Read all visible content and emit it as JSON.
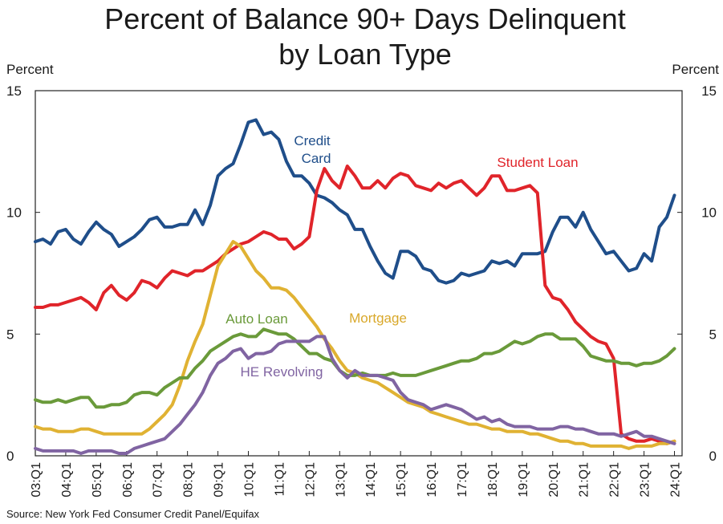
{
  "chart_data": {
    "type": "line",
    "title_line1": "Percent of Balance 90+ Days Delinquent",
    "title_line2": "by Loan Type",
    "ylabel_left": "Percent",
    "ylabel_right": "Percent",
    "ylim": [
      0,
      15
    ],
    "yticks": [
      "0",
      "5",
      "10",
      "15"
    ],
    "x_start": 2003.0,
    "x_end": 2024.0,
    "x_step": 0.25,
    "x_labels": [
      "03:Q1",
      "04:Q1",
      "05:Q1",
      "06:Q1",
      "07:Q1",
      "08:Q1",
      "09:Q1",
      "10:Q1",
      "11:Q1",
      "12:Q1",
      "13:Q1",
      "14:Q1",
      "15:Q1",
      "16:Q1",
      "17:Q1",
      "18:Q1",
      "19:Q1",
      "20:Q1",
      "21:Q1",
      "22:Q1",
      "23:Q1",
      "24:Q1"
    ],
    "source": "Source: New York Fed Consumer Credit Panel/Equifax",
    "series": [
      {
        "name": "Credit Card",
        "label_lines": [
          "Credit",
          "Card"
        ],
        "color": "#1f4e8a",
        "values": [
          8.8,
          8.9,
          8.7,
          9.2,
          9.3,
          8.9,
          8.7,
          9.2,
          9.6,
          9.3,
          9.1,
          8.6,
          8.8,
          9.0,
          9.3,
          9.7,
          9.8,
          9.4,
          9.4,
          9.5,
          9.5,
          10.1,
          9.5,
          10.3,
          11.5,
          11.8,
          12.0,
          12.8,
          13.7,
          13.8,
          13.2,
          13.3,
          13.0,
          12.1,
          11.5,
          11.5,
          11.2,
          10.7,
          10.6,
          10.4,
          10.1,
          9.9,
          9.3,
          9.3,
          8.6,
          8.0,
          7.5,
          7.3,
          8.4,
          8.4,
          8.2,
          7.7,
          7.6,
          7.2,
          7.1,
          7.2,
          7.5,
          7.4,
          7.5,
          7.6,
          8.0,
          7.9,
          8.0,
          7.8,
          8.3,
          8.3,
          8.3,
          8.4,
          9.2,
          9.8,
          9.8,
          9.4,
          10.0,
          9.3,
          8.8,
          8.3,
          8.4,
          8.0,
          7.6,
          7.7,
          8.3,
          8.0,
          9.4,
          9.8,
          10.7
        ]
      },
      {
        "name": "Student Loan",
        "label_lines": [
          "Student Loan"
        ],
        "color": "#e0242a",
        "values": [
          6.1,
          6.1,
          6.2,
          6.2,
          6.3,
          6.4,
          6.5,
          6.3,
          6.0,
          6.7,
          7.0,
          6.6,
          6.4,
          6.7,
          7.2,
          7.1,
          6.9,
          7.3,
          7.6,
          7.5,
          7.4,
          7.6,
          7.6,
          7.8,
          8.0,
          8.3,
          8.5,
          8.7,
          8.8,
          9.0,
          9.2,
          9.1,
          8.9,
          8.9,
          8.5,
          8.7,
          9.0,
          10.9,
          11.8,
          11.3,
          11.0,
          11.9,
          11.5,
          11.0,
          11.0,
          11.3,
          11.0,
          11.4,
          11.6,
          11.5,
          11.1,
          11.0,
          10.9,
          11.2,
          11.0,
          11.2,
          11.3,
          11.0,
          10.7,
          11.0,
          11.5,
          11.5,
          10.9,
          10.9,
          11.0,
          11.1,
          10.8,
          7.0,
          6.5,
          6.4,
          6.0,
          5.5,
          5.2,
          4.9,
          4.7,
          4.6,
          4.0,
          0.9,
          0.7,
          0.6,
          0.6,
          0.7,
          0.6,
          0.5,
          0.6
        ]
      },
      {
        "name": "Mortgage",
        "label_lines": [
          "Mortgage"
        ],
        "color": "#e0b233",
        "values": [
          1.2,
          1.1,
          1.1,
          1.0,
          1.0,
          1.0,
          1.1,
          1.1,
          1.0,
          0.9,
          0.9,
          0.9,
          0.9,
          0.9,
          0.9,
          1.1,
          1.4,
          1.7,
          2.1,
          2.9,
          3.9,
          4.7,
          5.4,
          6.6,
          7.8,
          8.3,
          8.8,
          8.6,
          8.1,
          7.6,
          7.3,
          6.9,
          6.9,
          6.8,
          6.5,
          6.1,
          5.7,
          5.3,
          4.8,
          4.4,
          3.9,
          3.5,
          3.4,
          3.2,
          3.1,
          3.0,
          2.8,
          2.6,
          2.4,
          2.2,
          2.1,
          2.0,
          1.8,
          1.7,
          1.6,
          1.5,
          1.4,
          1.3,
          1.3,
          1.2,
          1.1,
          1.1,
          1.0,
          1.0,
          1.0,
          0.9,
          0.9,
          0.8,
          0.7,
          0.6,
          0.6,
          0.5,
          0.5,
          0.4,
          0.4,
          0.4,
          0.4,
          0.4,
          0.3,
          0.4,
          0.4,
          0.4,
          0.5,
          0.5,
          0.6
        ]
      },
      {
        "name": "Auto Loan",
        "label_lines": [
          "Auto Loan"
        ],
        "color": "#6a9a3a",
        "values": [
          2.3,
          2.2,
          2.2,
          2.3,
          2.2,
          2.3,
          2.4,
          2.4,
          2.0,
          2.0,
          2.1,
          2.1,
          2.2,
          2.5,
          2.6,
          2.6,
          2.5,
          2.8,
          3.0,
          3.2,
          3.2,
          3.6,
          3.9,
          4.3,
          4.5,
          4.7,
          4.9,
          5.0,
          4.9,
          4.9,
          5.2,
          5.1,
          5.0,
          5.0,
          4.8,
          4.5,
          4.2,
          4.2,
          4.0,
          3.9,
          3.5,
          3.3,
          3.3,
          3.4,
          3.3,
          3.3,
          3.3,
          3.4,
          3.3,
          3.3,
          3.3,
          3.4,
          3.5,
          3.6,
          3.7,
          3.8,
          3.9,
          3.9,
          4.0,
          4.2,
          4.2,
          4.3,
          4.5,
          4.7,
          4.6,
          4.7,
          4.9,
          5.0,
          5.0,
          4.8,
          4.8,
          4.8,
          4.5,
          4.1,
          4.0,
          3.9,
          3.9,
          3.8,
          3.8,
          3.7,
          3.8,
          3.8,
          3.9,
          4.1,
          4.4
        ]
      },
      {
        "name": "HE Revolving",
        "label_lines": [
          "HE Revolving"
        ],
        "color": "#8064a2",
        "values": [
          0.3,
          0.2,
          0.2,
          0.2,
          0.2,
          0.2,
          0.1,
          0.2,
          0.2,
          0.2,
          0.2,
          0.1,
          0.1,
          0.3,
          0.4,
          0.5,
          0.6,
          0.7,
          1.0,
          1.3,
          1.7,
          2.1,
          2.6,
          3.3,
          3.8,
          4.0,
          4.3,
          4.4,
          4.0,
          4.2,
          4.2,
          4.3,
          4.6,
          4.7,
          4.7,
          4.7,
          4.7,
          4.9,
          4.9,
          4.0,
          3.5,
          3.2,
          3.5,
          3.3,
          3.3,
          3.3,
          3.2,
          3.1,
          2.6,
          2.3,
          2.2,
          2.1,
          1.9,
          2.0,
          2.1,
          2.0,
          1.9,
          1.7,
          1.5,
          1.6,
          1.4,
          1.5,
          1.3,
          1.2,
          1.2,
          1.2,
          1.1,
          1.1,
          1.1,
          1.2,
          1.2,
          1.1,
          1.1,
          1.0,
          0.9,
          0.9,
          0.9,
          0.8,
          0.9,
          1.0,
          0.8,
          0.8,
          0.7,
          0.6,
          0.5
        ]
      }
    ]
  }
}
